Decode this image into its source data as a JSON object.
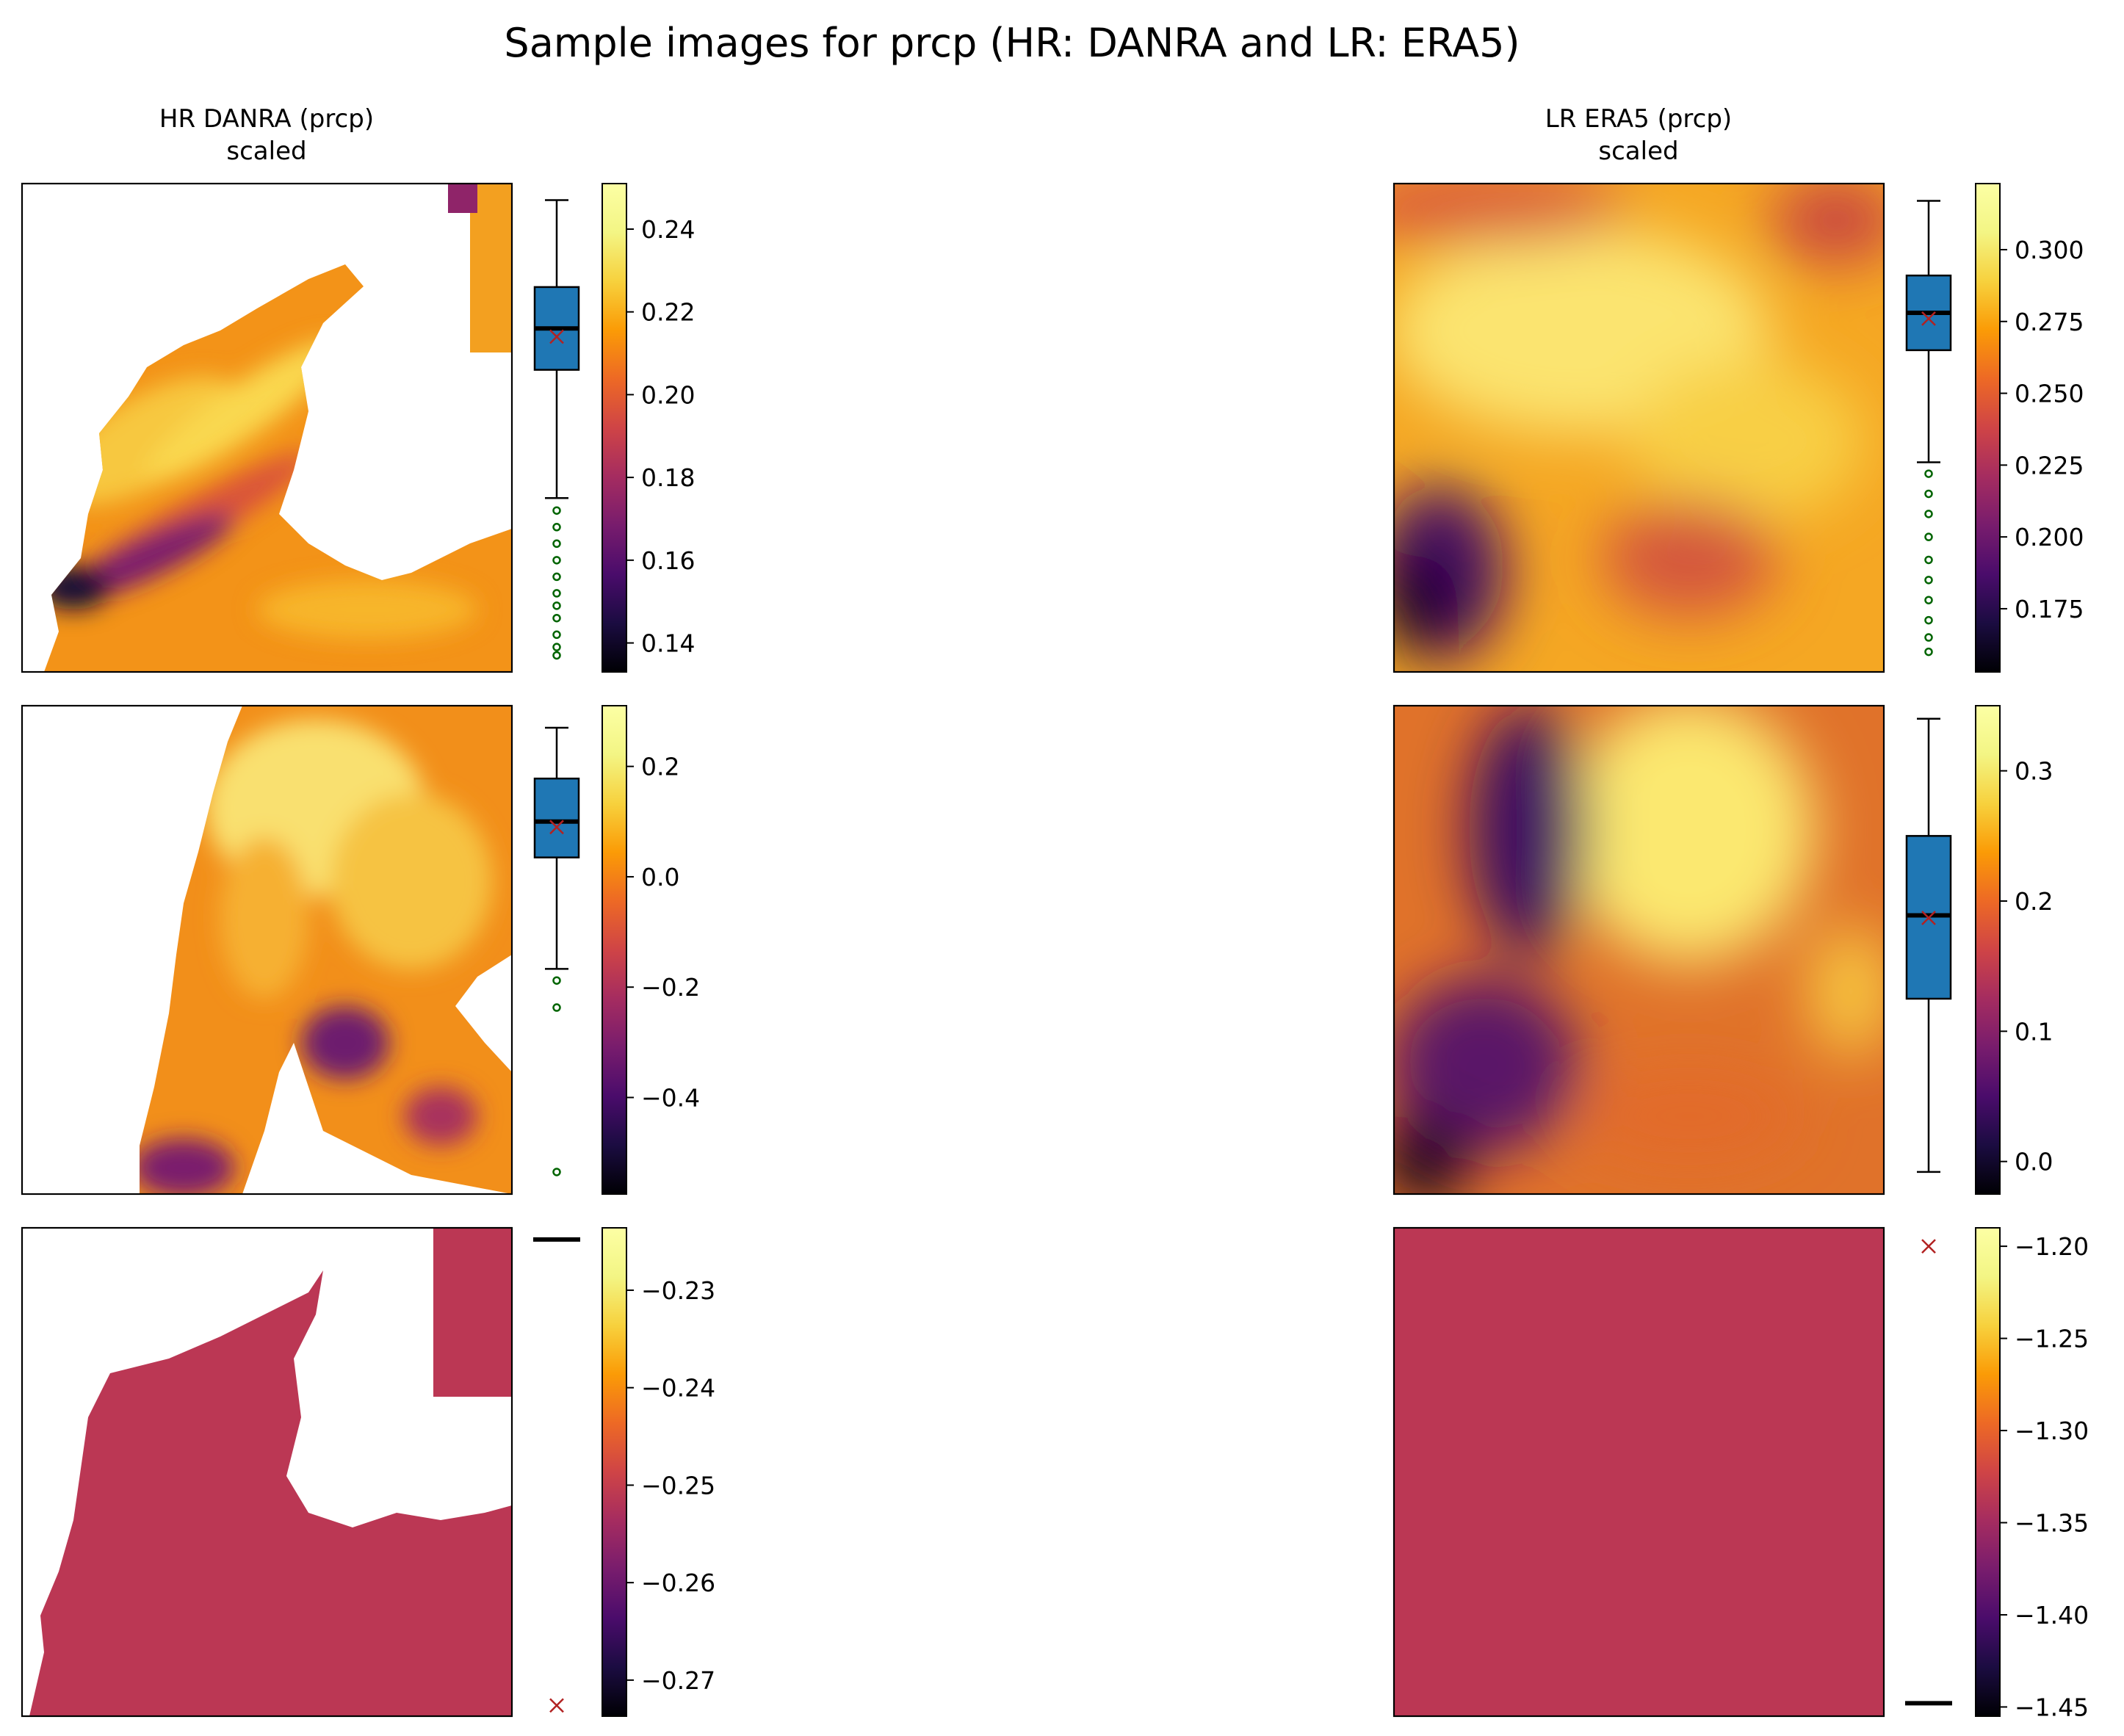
{
  "chart_data": {
    "type": "heatmap",
    "title": "Sample images for prcp (HR: DANRA and LR: ERA5)",
    "colormap": "inferno",
    "columns": [
      {
        "title_line1": "HR DANRA (prcp)",
        "title_line2": "scaled"
      },
      {
        "title_line1": "LR ERA5 (prcp)",
        "title_line2": "scaled"
      }
    ],
    "panels": [
      {
        "row": 0,
        "col": 0,
        "image": "masked-land",
        "colorbar": {
          "vmin": 0.133,
          "vmax": 0.251,
          "ticks": [
            0.14,
            0.16,
            0.18,
            0.2,
            0.22,
            0.24
          ],
          "tick_labels": [
            "0.14",
            "0.16",
            "0.18",
            "0.20",
            "0.22",
            "0.24"
          ]
        },
        "boxplot": {
          "whisker_low": 0.175,
          "q1": 0.206,
          "median": 0.216,
          "q3": 0.226,
          "whisker_high": 0.247,
          "mean": 0.214,
          "outliers": [
            0.172,
            0.168,
            0.164,
            0.16,
            0.156,
            0.152,
            0.149,
            0.146,
            0.142,
            0.139,
            0.137
          ]
        }
      },
      {
        "row": 0,
        "col": 1,
        "image": "full-field",
        "colorbar": {
          "vmin": 0.153,
          "vmax": 0.323,
          "ticks": [
            0.175,
            0.2,
            0.225,
            0.25,
            0.275,
            0.3
          ],
          "tick_labels": [
            "0.175",
            "0.200",
            "0.225",
            "0.250",
            "0.275",
            "0.300"
          ]
        },
        "boxplot": {
          "whisker_low": 0.226,
          "q1": 0.265,
          "median": 0.278,
          "q3": 0.291,
          "whisker_high": 0.317,
          "mean": 0.276,
          "outliers": [
            0.222,
            0.215,
            0.208,
            0.2,
            0.192,
            0.185,
            0.178,
            0.171,
            0.165,
            0.16
          ]
        }
      },
      {
        "row": 1,
        "col": 0,
        "image": "masked-land",
        "colorbar": {
          "vmin": -0.575,
          "vmax": 0.31,
          "ticks": [
            -0.4,
            -0.2,
            0.0,
            0.2
          ],
          "tick_labels": [
            "−0.4",
            "−0.2",
            "0.0",
            "0.2"
          ]
        },
        "boxplot": {
          "whisker_low": -0.167,
          "q1": 0.035,
          "median": 0.1,
          "q3": 0.178,
          "whisker_high": 0.27,
          "mean": 0.09,
          "outliers": [
            -0.188,
            -0.237,
            -0.535
          ]
        }
      },
      {
        "row": 1,
        "col": 1,
        "image": "full-field",
        "colorbar": {
          "vmin": -0.025,
          "vmax": 0.35,
          "ticks": [
            0.0,
            0.1,
            0.2,
            0.3
          ],
          "tick_labels": [
            "0.0",
            "0.1",
            "0.2",
            "0.3"
          ]
        },
        "boxplot": {
          "whisker_low": -0.008,
          "q1": 0.125,
          "median": 0.189,
          "q3": 0.25,
          "whisker_high": 0.34,
          "mean": 0.187,
          "outliers": []
        }
      },
      {
        "row": 2,
        "col": 0,
        "image": "masked-land-constant",
        "colorbar": {
          "vmin": -0.2737,
          "vmax": -0.2236,
          "ticks": [
            -0.27,
            -0.26,
            -0.25,
            -0.24,
            -0.23
          ],
          "tick_labels": [
            "−0.27",
            "−0.26",
            "−0.25",
            "−0.24",
            "−0.23"
          ]
        },
        "boxplot": {
          "median": -0.2248,
          "mean": -0.2726,
          "outliers": []
        }
      },
      {
        "row": 2,
        "col": 1,
        "image": "constant-field",
        "colorbar": {
          "vmin": -1.455,
          "vmax": -1.19,
          "ticks": [
            -1.45,
            -1.4,
            -1.35,
            -1.3,
            -1.25,
            -1.2
          ],
          "tick_labels": [
            "−1.45",
            "−1.40",
            "−1.35",
            "−1.30",
            "−1.25",
            "−1.20"
          ]
        },
        "boxplot": {
          "median": -1.448,
          "mean": -1.2,
          "outliers": []
        }
      }
    ],
    "colors": {
      "box_fill": "#1f77b4",
      "median": "#000000",
      "mean_marker": "#b22222",
      "outlier": "#006400",
      "constant_field": "#bb3754"
    }
  }
}
